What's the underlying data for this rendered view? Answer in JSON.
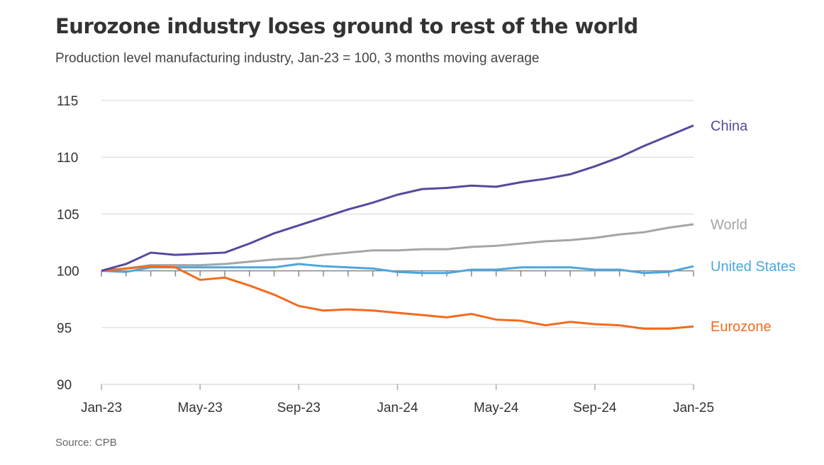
{
  "chart_data": {
    "type": "line",
    "title": "Eurozone industry loses ground to rest of the world",
    "subtitle": "Production level manufacturing industry, Jan-23 = 100, 3 months moving average",
    "source": "Source: CPB",
    "xlabel": "",
    "ylabel": "",
    "ylim": [
      90,
      115
    ],
    "yticks": [
      "90",
      "95",
      "100",
      "105",
      "110",
      "115"
    ],
    "xticks": [
      "Jan-23",
      "May-23",
      "Sep-23",
      "Jan-24",
      "May-24",
      "Sep-24",
      "Jan-25"
    ],
    "x_months": 25,
    "grid": true,
    "series": [
      {
        "name": "China",
        "color": "#56499e",
        "values": [
          100,
          100.6,
          101.6,
          101.4,
          101.5,
          101.6,
          102.4,
          103.3,
          104.0,
          104.7,
          105.4,
          106.0,
          106.7,
          107.2,
          107.3,
          107.5,
          107.4,
          107.8,
          108.1,
          108.5,
          109.2,
          110.0,
          111.0,
          111.9,
          112.8
        ]
      },
      {
        "name": "World",
        "color": "#a5a5a5",
        "values": [
          100,
          100.2,
          100.5,
          100.5,
          100.5,
          100.6,
          100.8,
          101.0,
          101.1,
          101.4,
          101.6,
          101.8,
          101.8,
          101.9,
          101.9,
          102.1,
          102.2,
          102.4,
          102.6,
          102.7,
          102.9,
          103.2,
          103.4,
          103.8,
          104.1
        ]
      },
      {
        "name": "United States",
        "color": "#4ea6dc",
        "values": [
          100,
          99.9,
          100.3,
          100.3,
          100.3,
          100.3,
          100.3,
          100.3,
          100.6,
          100.4,
          100.3,
          100.2,
          99.9,
          99.8,
          99.8,
          100.1,
          100.1,
          100.3,
          100.3,
          100.3,
          100.1,
          100.1,
          99.8,
          99.9,
          100.4
        ]
      },
      {
        "name": "Eurozone",
        "color": "#f26b1d",
        "values": [
          100,
          100.2,
          100.4,
          100.3,
          99.2,
          99.4,
          98.7,
          97.9,
          96.9,
          96.5,
          96.6,
          96.5,
          96.3,
          96.1,
          95.9,
          96.2,
          95.7,
          95.6,
          95.2,
          95.5,
          95.3,
          95.2,
          94.9,
          94.9,
          95.1
        ]
      }
    ]
  }
}
